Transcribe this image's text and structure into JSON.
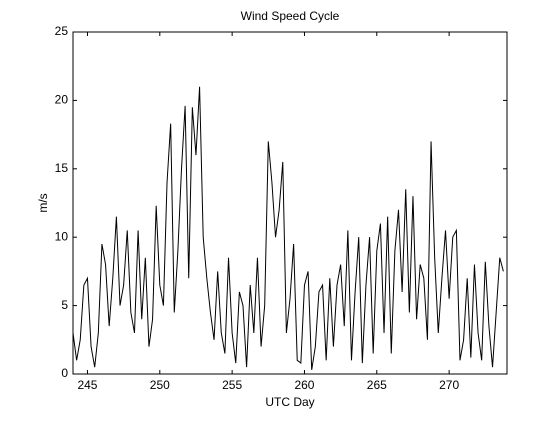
{
  "chart_data": {
    "type": "line",
    "title": "Wind Speed Cycle",
    "xlabel": "UTC Day",
    "ylabel": "m/s",
    "color": "#000000",
    "x": [
      244,
      244.25,
      244.5,
      244.75,
      245,
      245.25,
      245.5,
      245.75,
      246,
      246.25,
      246.5,
      246.75,
      247,
      247.25,
      247.5,
      247.75,
      248,
      248.25,
      248.5,
      248.75,
      249,
      249.25,
      249.5,
      249.75,
      250,
      250.25,
      250.5,
      250.75,
      251,
      251.25,
      251.5,
      251.75,
      252,
      252.25,
      252.5,
      252.75,
      253,
      253.25,
      253.5,
      253.75,
      254,
      254.25,
      254.5,
      254.75,
      255,
      255.25,
      255.5,
      255.75,
      256,
      256.25,
      256.5,
      256.75,
      257,
      257.25,
      257.5,
      257.75,
      258,
      258.25,
      258.5,
      258.75,
      259,
      259.25,
      259.5,
      259.75,
      260,
      260.25,
      260.5,
      260.75,
      261,
      261.25,
      261.5,
      261.75,
      262,
      262.25,
      262.5,
      262.75,
      263,
      263.25,
      263.5,
      263.75,
      264,
      264.25,
      264.5,
      264.75,
      265,
      265.25,
      265.5,
      265.75,
      266,
      266.25,
      266.5,
      266.75,
      267,
      267.25,
      267.5,
      267.75,
      268,
      268.25,
      268.5,
      268.75,
      269,
      269.25,
      269.5,
      269.75,
      270,
      270.25,
      270.5,
      270.75,
      271,
      271.25,
      271.5,
      271.75,
      272,
      272.25,
      272.5,
      272.75,
      273,
      273.25,
      273.5,
      273.75
    ],
    "values": [
      3,
      1,
      2.5,
      6.5,
      7,
      2,
      0.5,
      3,
      9.5,
      8,
      3.5,
      7,
      11.5,
      5,
      6.5,
      10.5,
      4.5,
      3,
      10.5,
      4,
      8.5,
      2,
      4,
      12.3,
      6.5,
      5,
      14,
      18.3,
      4.5,
      9,
      15,
      19.6,
      7,
      19.5,
      16,
      21,
      10,
      7,
      4.5,
      2.5,
      7.5,
      3,
      1.5,
      8.5,
      3,
      0.8,
      6,
      5,
      0.5,
      6.5,
      3,
      8.5,
      2,
      5,
      17,
      14,
      10,
      12,
      15.5,
      3,
      5.5,
      9.5,
      1,
      0.8,
      6.5,
      7.5,
      0.3,
      2,
      6,
      6.5,
      1,
      7,
      2,
      6.5,
      8,
      3.5,
      10.5,
      1,
      6,
      10,
      0.8,
      6.5,
      10,
      1.5,
      9,
      11,
      3,
      11.5,
      1.5,
      9,
      12,
      6,
      13.5,
      4.5,
      13,
      4,
      8,
      7,
      2.5,
      17,
      8.5,
      3,
      7,
      10.5,
      5.5,
      10,
      10.5,
      1,
      2.5,
      7,
      1.2,
      8,
      3,
      1,
      8.2,
      3.5,
      0.5,
      4.5,
      8.5,
      7.5
    ],
    "xlim": [
      244,
      274
    ],
    "xticks": [
      245,
      250,
      255,
      260,
      265,
      270
    ],
    "ylim": [
      0,
      25
    ],
    "yticks": [
      0,
      5,
      10,
      15,
      20,
      25
    ]
  }
}
